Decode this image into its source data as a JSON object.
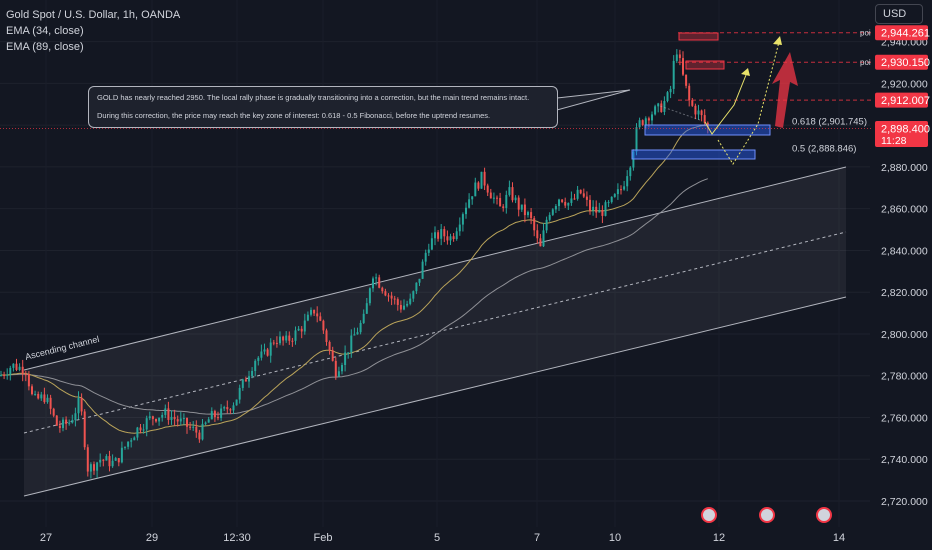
{
  "legend": {
    "title": "Gold Spot / U.S. Dollar, 1h, OANDA",
    "ema1": "EMA (34, close)",
    "ema2": "EMA (89, close)"
  },
  "currency_button": "USD",
  "note": {
    "line1": "GOLD has nearly reached 2950. The local rally phase is gradually transitioning into a correction, but the main trend remains intact.",
    "line2": "During this correction, the price may reach the key zone of interest: 0.618 - 0.5 Fibonacci, before the uptrend resumes."
  },
  "channel_label": "Ascending channel",
  "price_badges": [
    {
      "label": "2,944.261",
      "tag": "poi",
      "value": 2944.261
    },
    {
      "label": "2,930.150",
      "tag": "poi",
      "value": 2930.15
    },
    {
      "label": "2,912.007",
      "tag": "",
      "value": 2912.007
    },
    {
      "label": "2,898.400",
      "sub": "11:28",
      "tag": "",
      "value": 2898.4
    }
  ],
  "fib_levels": [
    {
      "label": "0.618 (2,901.745)",
      "value": 2901.745
    },
    {
      "label": "0.5 (2,888.846)",
      "value": 2888.846
    }
  ],
  "colors": {
    "background": "#131722",
    "up": "#26a69a",
    "down": "#ef5350",
    "ema34": "#b9a35a",
    "ema89": "#8f9096",
    "channel": "#b2b5be",
    "badge_red": "#f23645",
    "fib_box": "#2962ff",
    "arrow_yellow": "#e8e26a"
  },
  "chart_data": {
    "type": "candlestick",
    "symbol": "Gold Spot / U.S. Dollar",
    "interval": "1h",
    "y_ticks": [
      2720,
      2740,
      2760,
      2780,
      2800,
      2820,
      2840,
      2860,
      2880,
      2900,
      2920,
      2940
    ],
    "y_tick_labels": [
      "2,720.000",
      "2,740.000",
      "2,760.000",
      "2,780.000",
      "2,800.000",
      "2,820.000",
      "2,840.000",
      "2,860.000",
      "2,880.000",
      "2,900.000",
      "2,920.000",
      "2,940.000"
    ],
    "ylim": [
      2710,
      2952
    ],
    "x_tick_labels": [
      "27",
      "29",
      "12:30",
      "Feb",
      "5",
      "7",
      "10",
      "12",
      "14"
    ],
    "last_price": 2898.4,
    "price_path": [
      [
        0,
        2780
      ],
      [
        12,
        2785
      ],
      [
        26,
        2783
      ],
      [
        33,
        2768
      ],
      [
        45,
        2770
      ],
      [
        58,
        2755
      ],
      [
        70,
        2758
      ],
      [
        80,
        2768
      ],
      [
        88,
        2735
      ],
      [
        100,
        2740
      ],
      [
        115,
        2738
      ],
      [
        130,
        2750
      ],
      [
        140,
        2756
      ],
      [
        152,
        2760
      ],
      [
        165,
        2762
      ],
      [
        180,
        2758
      ],
      [
        200,
        2752
      ],
      [
        210,
        2760
      ],
      [
        222,
        2762
      ],
      [
        235,
        2768
      ],
      [
        245,
        2778
      ],
      [
        255,
        2788
      ],
      [
        265,
        2790
      ],
      [
        275,
        2798
      ],
      [
        285,
        2796
      ],
      [
        295,
        2800
      ],
      [
        305,
        2805
      ],
      [
        315,
        2812
      ],
      [
        325,
        2800
      ],
      [
        335,
        2782
      ],
      [
        345,
        2790
      ],
      [
        355,
        2800
      ],
      [
        365,
        2808
      ],
      [
        372,
        2830
      ],
      [
        380,
        2824
      ],
      [
        390,
        2818
      ],
      [
        400,
        2813
      ],
      [
        410,
        2815
      ],
      [
        418,
        2825
      ],
      [
        428,
        2843
      ],
      [
        440,
        2848
      ],
      [
        452,
        2846
      ],
      [
        462,
        2858
      ],
      [
        472,
        2868
      ],
      [
        482,
        2875
      ],
      [
        490,
        2868
      ],
      [
        500,
        2860
      ],
      [
        510,
        2868
      ],
      [
        520,
        2860
      ],
      [
        530,
        2856
      ],
      [
        540,
        2840
      ],
      [
        548,
        2858
      ],
      [
        560,
        2866
      ],
      [
        570,
        2862
      ],
      [
        580,
        2868
      ],
      [
        590,
        2860
      ],
      [
        600,
        2858
      ],
      [
        610,
        2862
      ],
      [
        622,
        2870
      ],
      [
        630,
        2882
      ],
      [
        638,
        2900
      ],
      [
        648,
        2905
      ],
      [
        660,
        2908
      ],
      [
        670,
        2915
      ],
      [
        676,
        2938
      ],
      [
        682,
        2925
      ],
      [
        690,
        2910
      ],
      [
        700,
        2905
      ],
      [
        708,
        2898.4
      ]
    ]
  }
}
